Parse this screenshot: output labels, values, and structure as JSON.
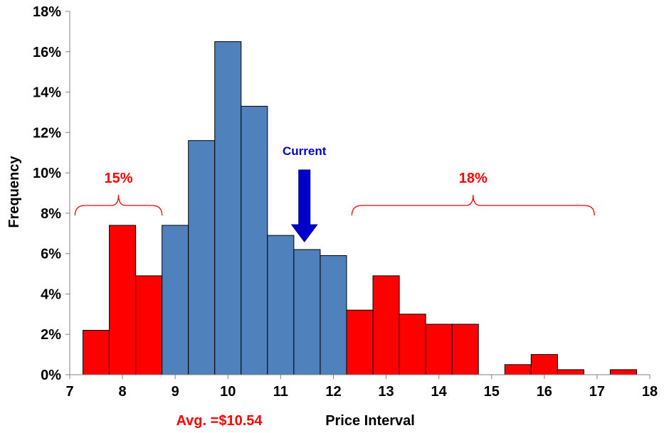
{
  "chart_data": {
    "type": "bar",
    "xlabel": "Price Interval",
    "ylabel": "Frequency",
    "xlim": [
      7,
      18
    ],
    "ylim": [
      0,
      18
    ],
    "x_ticks": [
      "7",
      "8",
      "9",
      "10",
      "11",
      "12",
      "13",
      "14",
      "15",
      "16",
      "17",
      "18"
    ],
    "y_ticks": [
      "0%",
      "2%",
      "4%",
      "6%",
      "8%",
      "10%",
      "12%",
      "14%",
      "16%",
      "18%"
    ],
    "bin_width": 0.5,
    "bins": [
      {
        "start": 7.25,
        "value": 2.2,
        "group": "tail"
      },
      {
        "start": 7.75,
        "value": 7.4,
        "group": "tail"
      },
      {
        "start": 8.25,
        "value": 4.9,
        "group": "tail"
      },
      {
        "start": 8.75,
        "value": 7.4,
        "group": "middle"
      },
      {
        "start": 9.25,
        "value": 11.6,
        "group": "middle"
      },
      {
        "start": 9.75,
        "value": 16.5,
        "group": "middle"
      },
      {
        "start": 10.25,
        "value": 13.3,
        "group": "middle"
      },
      {
        "start": 10.75,
        "value": 6.9,
        "group": "middle"
      },
      {
        "start": 11.25,
        "value": 6.2,
        "group": "middle"
      },
      {
        "start": 11.75,
        "value": 5.9,
        "group": "middle"
      },
      {
        "start": 12.25,
        "value": 3.2,
        "group": "tail"
      },
      {
        "start": 12.75,
        "value": 4.9,
        "group": "tail"
      },
      {
        "start": 13.25,
        "value": 3.0,
        "group": "tail"
      },
      {
        "start": 13.75,
        "value": 2.5,
        "group": "tail"
      },
      {
        "start": 14.25,
        "value": 2.5,
        "group": "tail"
      },
      {
        "start": 15.25,
        "value": 0.5,
        "group": "tail"
      },
      {
        "start": 15.75,
        "value": 1.0,
        "group": "tail"
      },
      {
        "start": 16.25,
        "value": 0.25,
        "group": "tail"
      },
      {
        "start": 17.25,
        "value": 0.25,
        "group": "tail"
      }
    ],
    "colors": {
      "tail": "#ff0000",
      "middle": "#4f81bd",
      "current_arrow": "#0000cc",
      "annotation": "#ff0000",
      "axis": "#808080"
    },
    "annotations": {
      "left_tail": {
        "label": "15%",
        "from": 7.1,
        "to": 8.75
      },
      "right_tail": {
        "label": "18%",
        "from": 12.35,
        "to": 16.95
      },
      "current": {
        "label": "Current",
        "x": 11.45
      },
      "average": {
        "label": "Avg. =$10.54"
      }
    }
  }
}
